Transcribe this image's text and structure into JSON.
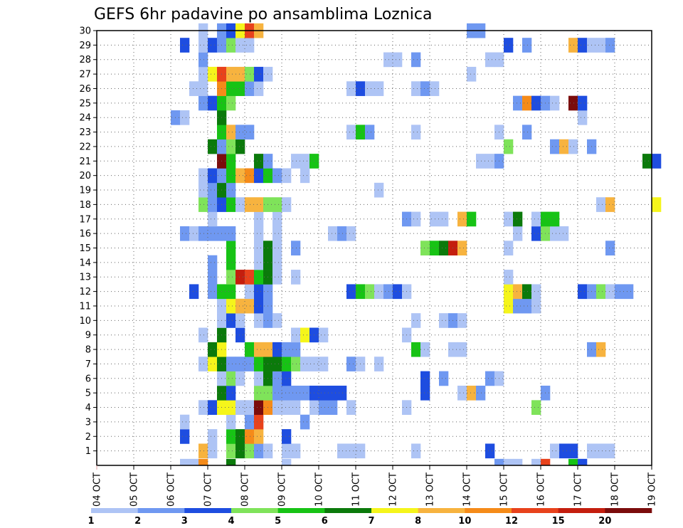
{
  "chart_data": {
    "type": "heatmap",
    "title": "GEFS 6hr padavine po ansamblima Loznica",
    "xlabel": "",
    "ylabel": "",
    "x_tick_labels": [
      "04 OCT",
      "05 OCT",
      "06 OCT",
      "07 OCT",
      "08 OCT",
      "09 OCT",
      "10 OCT",
      "11 OCT",
      "12 OCT",
      "13 OCT",
      "14 OCT",
      "15 OCT",
      "16 OCT",
      "17 OCT",
      "18 OCT",
      "19 OCT"
    ],
    "y_tick_labels": [
      "1",
      "2",
      "3",
      "4",
      "5",
      "6",
      "7",
      "8",
      "9",
      "10",
      "11",
      "12",
      "13",
      "14",
      "15",
      "16",
      "17",
      "18",
      "19",
      "20",
      "21",
      "22",
      "23",
      "24",
      "25",
      "26",
      "27",
      "28",
      "29",
      "30"
    ],
    "time_steps_per_day": 4,
    "grid": true,
    "colorbar": {
      "labels": [
        "1",
        "2",
        "3",
        "4",
        "5",
        "6",
        "7",
        "8",
        "10",
        "12",
        "15",
        "20"
      ],
      "colors": [
        "#aec4f5",
        "#6f98f1",
        "#1e4de0",
        "#7fe35a",
        "#17c315",
        "#0b7a0b",
        "#f5f51b",
        "#f7b33f",
        "#f58b19",
        "#e8421c",
        "#c41e0e",
        "#7b0c0c"
      ]
    },
    "cells": [
      [
        1,
        11,
        7
      ],
      [
        1,
        12,
        0
      ],
      [
        1,
        14,
        3
      ],
      [
        1,
        15,
        5
      ],
      [
        1,
        16,
        3
      ],
      [
        1,
        17,
        1
      ],
      [
        1,
        18,
        0
      ],
      [
        1,
        20,
        0
      ],
      [
        1,
        21,
        0
      ],
      [
        1,
        26,
        0
      ],
      [
        1,
        27,
        0
      ],
      [
        1,
        28,
        0
      ],
      [
        1,
        34,
        0
      ],
      [
        1,
        42,
        2
      ],
      [
        1,
        49,
        0
      ],
      [
        1,
        50,
        2
      ],
      [
        1,
        51,
        2
      ],
      [
        1,
        53,
        0
      ],
      [
        1,
        54,
        0
      ],
      [
        1,
        55,
        0
      ],
      [
        2,
        9,
        2
      ],
      [
        2,
        12,
        0
      ],
      [
        2,
        14,
        4
      ],
      [
        2,
        15,
        5
      ],
      [
        2,
        16,
        8
      ],
      [
        2,
        17,
        7
      ],
      [
        2,
        20,
        2
      ],
      [
        3,
        9,
        0
      ],
      [
        3,
        14,
        0
      ],
      [
        3,
        16,
        1
      ],
      [
        3,
        17,
        9
      ],
      [
        3,
        22,
        1
      ],
      [
        4,
        11,
        0
      ],
      [
        4,
        12,
        2
      ],
      [
        4,
        13,
        6
      ],
      [
        4,
        14,
        6
      ],
      [
        4,
        15,
        0
      ],
      [
        4,
        16,
        0
      ],
      [
        4,
        17,
        11
      ],
      [
        4,
        18,
        8
      ],
      [
        4,
        19,
        0
      ],
      [
        4,
        20,
        0
      ],
      [
        4,
        21,
        0
      ],
      [
        4,
        23,
        0
      ],
      [
        4,
        24,
        1
      ],
      [
        4,
        25,
        1
      ],
      [
        4,
        27,
        0
      ],
      [
        4,
        33,
        0
      ],
      [
        4,
        47,
        3
      ],
      [
        5,
        13,
        5
      ],
      [
        5,
        14,
        2
      ],
      [
        5,
        17,
        3
      ],
      [
        5,
        18,
        3
      ],
      [
        5,
        19,
        1
      ],
      [
        5,
        20,
        1
      ],
      [
        5,
        21,
        1
      ],
      [
        5,
        22,
        1
      ],
      [
        5,
        23,
        2
      ],
      [
        5,
        24,
        2
      ],
      [
        5,
        25,
        2
      ],
      [
        5,
        26,
        2
      ],
      [
        5,
        35,
        2
      ],
      [
        5,
        39,
        0
      ],
      [
        5,
        40,
        7
      ],
      [
        5,
        41,
        1
      ],
      [
        5,
        48,
        1
      ],
      [
        6,
        13,
        0
      ],
      [
        6,
        14,
        3
      ],
      [
        6,
        15,
        0
      ],
      [
        6,
        17,
        0
      ],
      [
        6,
        18,
        5
      ],
      [
        6,
        19,
        1
      ],
      [
        6,
        20,
        2
      ],
      [
        6,
        35,
        2
      ],
      [
        6,
        37,
        1
      ],
      [
        6,
        42,
        1
      ],
      [
        6,
        43,
        0
      ],
      [
        7,
        11,
        0
      ],
      [
        7,
        12,
        6
      ],
      [
        7,
        13,
        5
      ],
      [
        7,
        14,
        1
      ],
      [
        7,
        15,
        1
      ],
      [
        7,
        16,
        1
      ],
      [
        7,
        17,
        4
      ],
      [
        7,
        18,
        5
      ],
      [
        7,
        19,
        5
      ],
      [
        7,
        20,
        4
      ],
      [
        7,
        21,
        3
      ],
      [
        7,
        22,
        0
      ],
      [
        7,
        23,
        0
      ],
      [
        7,
        24,
        0
      ],
      [
        7,
        27,
        1
      ],
      [
        7,
        28,
        0
      ],
      [
        7,
        30,
        0
      ],
      [
        8,
        12,
        5
      ],
      [
        8,
        13,
        6
      ],
      [
        8,
        16,
        4
      ],
      [
        8,
        17,
        7
      ],
      [
        8,
        18,
        7
      ],
      [
        8,
        19,
        2
      ],
      [
        8,
        20,
        1
      ],
      [
        8,
        21,
        1
      ],
      [
        8,
        34,
        4
      ],
      [
        8,
        35,
        0
      ],
      [
        8,
        38,
        0
      ],
      [
        8,
        39,
        0
      ],
      [
        8,
        53,
        1
      ],
      [
        8,
        54,
        7
      ],
      [
        9,
        11,
        0
      ],
      [
        9,
        13,
        5
      ],
      [
        9,
        15,
        2
      ],
      [
        9,
        21,
        0
      ],
      [
        9,
        22,
        6
      ],
      [
        9,
        23,
        2
      ],
      [
        9,
        24,
        0
      ],
      [
        9,
        33,
        0
      ],
      [
        10,
        13,
        0
      ],
      [
        10,
        14,
        2
      ],
      [
        10,
        15,
        0
      ],
      [
        10,
        17,
        0
      ],
      [
        10,
        18,
        1
      ],
      [
        10,
        19,
        0
      ],
      [
        10,
        34,
        0
      ],
      [
        10,
        37,
        0
      ],
      [
        10,
        38,
        1
      ],
      [
        10,
        39,
        0
      ],
      [
        11,
        13,
        0
      ],
      [
        11,
        14,
        6
      ],
      [
        11,
        15,
        7
      ],
      [
        11,
        16,
        7
      ],
      [
        11,
        17,
        2
      ],
      [
        11,
        18,
        1
      ],
      [
        11,
        44,
        6
      ],
      [
        11,
        45,
        1
      ],
      [
        11,
        46,
        1
      ],
      [
        11,
        47,
        0
      ],
      [
        12,
        10,
        2
      ],
      [
        12,
        12,
        1
      ],
      [
        12,
        13,
        4
      ],
      [
        12,
        14,
        4
      ],
      [
        12,
        16,
        0
      ],
      [
        12,
        17,
        2
      ],
      [
        12,
        18,
        1
      ],
      [
        12,
        27,
        2
      ],
      [
        12,
        28,
        4
      ],
      [
        12,
        29,
        3
      ],
      [
        12,
        30,
        0
      ],
      [
        12,
        31,
        1
      ],
      [
        12,
        32,
        2
      ],
      [
        12,
        33,
        0
      ],
      [
        12,
        44,
        6
      ],
      [
        12,
        45,
        7
      ],
      [
        12,
        46,
        5
      ],
      [
        12,
        47,
        0
      ],
      [
        12,
        52,
        2
      ],
      [
        12,
        53,
        1
      ],
      [
        12,
        54,
        3
      ],
      [
        12,
        55,
        0
      ],
      [
        12,
        56,
        1
      ],
      [
        12,
        57,
        1
      ],
      [
        13,
        12,
        1
      ],
      [
        13,
        14,
        3
      ],
      [
        13,
        15,
        10
      ],
      [
        13,
        16,
        9
      ],
      [
        13,
        17,
        4
      ],
      [
        13,
        18,
        5
      ],
      [
        13,
        19,
        0
      ],
      [
        13,
        21,
        0
      ],
      [
        13,
        44,
        0
      ],
      [
        14,
        12,
        1
      ],
      [
        14,
        14,
        4
      ],
      [
        14,
        17,
        0
      ],
      [
        14,
        18,
        5
      ],
      [
        14,
        19,
        0
      ],
      [
        15,
        14,
        4
      ],
      [
        15,
        17,
        0
      ],
      [
        15,
        18,
        5
      ],
      [
        15,
        19,
        0
      ],
      [
        15,
        21,
        1
      ],
      [
        15,
        35,
        3
      ],
      [
        15,
        36,
        4
      ],
      [
        15,
        37,
        5
      ],
      [
        15,
        38,
        10
      ],
      [
        15,
        39,
        7
      ],
      [
        15,
        44,
        0
      ],
      [
        15,
        55,
        1
      ],
      [
        16,
        9,
        1
      ],
      [
        16,
        10,
        0
      ],
      [
        16,
        11,
        1
      ],
      [
        16,
        12,
        1
      ],
      [
        16,
        13,
        1
      ],
      [
        16,
        14,
        1
      ],
      [
        16,
        17,
        0
      ],
      [
        16,
        19,
        0
      ],
      [
        16,
        25,
        0
      ],
      [
        16,
        26,
        1
      ],
      [
        16,
        27,
        0
      ],
      [
        16,
        45,
        0
      ],
      [
        16,
        47,
        2
      ],
      [
        16,
        48,
        3
      ],
      [
        16,
        49,
        0
      ],
      [
        16,
        50,
        0
      ],
      [
        17,
        12,
        0
      ],
      [
        17,
        17,
        0
      ],
      [
        17,
        19,
        0
      ],
      [
        17,
        33,
        1
      ],
      [
        17,
        34,
        0
      ],
      [
        17,
        36,
        0
      ],
      [
        17,
        37,
        0
      ],
      [
        17,
        39,
        7
      ],
      [
        17,
        40,
        4
      ],
      [
        17,
        44,
        0
      ],
      [
        17,
        45,
        5
      ],
      [
        17,
        47,
        0
      ],
      [
        17,
        48,
        4
      ],
      [
        17,
        49,
        4
      ],
      [
        18,
        11,
        3
      ],
      [
        18,
        12,
        1
      ],
      [
        18,
        13,
        2
      ],
      [
        18,
        14,
        4
      ],
      [
        18,
        15,
        0
      ],
      [
        18,
        16,
        7
      ],
      [
        18,
        17,
        7
      ],
      [
        18,
        18,
        3
      ],
      [
        18,
        19,
        3
      ],
      [
        18,
        20,
        0
      ],
      [
        18,
        54,
        0
      ],
      [
        18,
        55,
        7
      ],
      [
        18,
        60,
        6
      ],
      [
        19,
        11,
        0
      ],
      [
        19,
        12,
        1
      ],
      [
        19,
        13,
        5
      ],
      [
        19,
        14,
        1
      ],
      [
        19,
        30,
        0
      ],
      [
        20,
        11,
        0
      ],
      [
        20,
        12,
        2
      ],
      [
        20,
        13,
        1
      ],
      [
        20,
        14,
        4
      ],
      [
        20,
        15,
        7
      ],
      [
        20,
        16,
        8
      ],
      [
        20,
        17,
        2
      ],
      [
        20,
        18,
        4
      ],
      [
        20,
        19,
        1
      ],
      [
        20,
        20,
        0
      ],
      [
        20,
        22,
        0
      ],
      [
        21,
        13,
        11
      ],
      [
        21,
        14,
        4
      ],
      [
        21,
        17,
        5
      ],
      [
        21,
        18,
        1
      ],
      [
        21,
        21,
        0
      ],
      [
        21,
        22,
        0
      ],
      [
        21,
        23,
        4
      ],
      [
        21,
        41,
        0
      ],
      [
        21,
        42,
        0
      ],
      [
        21,
        43,
        1
      ],
      [
        21,
        59,
        5
      ],
      [
        21,
        60,
        2
      ],
      [
        22,
        12,
        5
      ],
      [
        22,
        13,
        1
      ],
      [
        22,
        14,
        3
      ],
      [
        22,
        15,
        5
      ],
      [
        22,
        44,
        3
      ],
      [
        22,
        49,
        1
      ],
      [
        22,
        50,
        7
      ],
      [
        22,
        51,
        0
      ],
      [
        22,
        53,
        1
      ],
      [
        23,
        13,
        4
      ],
      [
        23,
        14,
        7
      ],
      [
        23,
        15,
        1
      ],
      [
        23,
        16,
        1
      ],
      [
        23,
        27,
        0
      ],
      [
        23,
        28,
        4
      ],
      [
        23,
        29,
        1
      ],
      [
        23,
        34,
        0
      ],
      [
        23,
        43,
        0
      ],
      [
        23,
        46,
        1
      ],
      [
        24,
        8,
        1
      ],
      [
        24,
        9,
        0
      ],
      [
        24,
        13,
        5
      ],
      [
        24,
        52,
        0
      ],
      [
        25,
        11,
        1
      ],
      [
        25,
        12,
        2
      ],
      [
        25,
        13,
        4
      ],
      [
        25,
        14,
        3
      ],
      [
        25,
        45,
        1
      ],
      [
        25,
        46,
        8
      ],
      [
        25,
        47,
        2
      ],
      [
        25,
        48,
        1
      ],
      [
        25,
        49,
        0
      ],
      [
        25,
        51,
        11
      ],
      [
        25,
        52,
        2
      ],
      [
        26,
        10,
        0
      ],
      [
        26,
        11,
        0
      ],
      [
        26,
        13,
        8
      ],
      [
        26,
        14,
        4
      ],
      [
        26,
        15,
        4
      ],
      [
        26,
        16,
        1
      ],
      [
        26,
        17,
        0
      ],
      [
        26,
        27,
        0
      ],
      [
        26,
        28,
        2
      ],
      [
        26,
        29,
        0
      ],
      [
        26,
        30,
        0
      ],
      [
        26,
        34,
        0
      ],
      [
        26,
        35,
        1
      ],
      [
        26,
        36,
        0
      ],
      [
        27,
        11,
        0
      ],
      [
        27,
        12,
        6
      ],
      [
        27,
        13,
        9
      ],
      [
        27,
        14,
        7
      ],
      [
        27,
        15,
        7
      ],
      [
        27,
        16,
        3
      ],
      [
        27,
        17,
        2
      ],
      [
        27,
        18,
        0
      ],
      [
        27,
        40,
        0
      ],
      [
        28,
        11,
        1
      ],
      [
        28,
        31,
        0
      ],
      [
        28,
        32,
        0
      ],
      [
        28,
        34,
        1
      ],
      [
        28,
        42,
        0
      ],
      [
        28,
        43,
        0
      ],
      [
        29,
        9,
        2
      ],
      [
        29,
        11,
        0
      ],
      [
        29,
        12,
        2
      ],
      [
        29,
        13,
        1
      ],
      [
        29,
        14,
        3
      ],
      [
        29,
        15,
        0
      ],
      [
        29,
        16,
        0
      ],
      [
        29,
        44,
        2
      ],
      [
        29,
        46,
        1
      ],
      [
        29,
        51,
        7
      ],
      [
        29,
        52,
        2
      ],
      [
        29,
        53,
        0
      ],
      [
        29,
        54,
        0
      ],
      [
        29,
        55,
        1
      ],
      [
        30,
        11,
        0
      ],
      [
        30,
        13,
        1
      ],
      [
        30,
        14,
        2
      ],
      [
        30,
        15,
        6
      ],
      [
        30,
        16,
        9
      ],
      [
        30,
        17,
        7
      ],
      [
        30,
        40,
        1
      ],
      [
        30,
        41,
        1
      ],
      [
        0,
        9,
        0
      ],
      [
        0,
        10,
        0
      ],
      [
        0,
        11,
        8
      ],
      [
        0,
        14,
        5
      ],
      [
        0,
        20,
        0
      ],
      [
        0,
        43,
        1
      ],
      [
        0,
        44,
        0
      ],
      [
        0,
        45,
        0
      ],
      [
        0,
        47,
        0
      ],
      [
        0,
        48,
        9
      ],
      [
        0,
        51,
        4
      ],
      [
        0,
        52,
        2
      ]
    ]
  }
}
